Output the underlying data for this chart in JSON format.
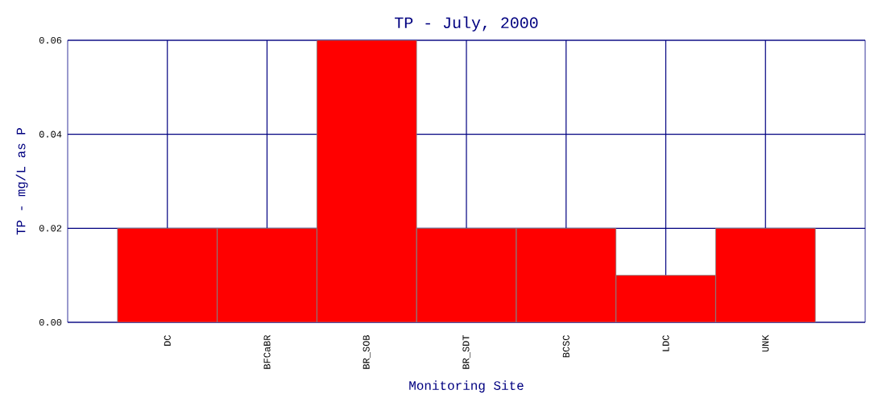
{
  "chart_data": {
    "type": "bar",
    "title": "TP - July, 2000",
    "xlabel": "Monitoring Site",
    "ylabel": "TP - mg/L as P",
    "categories": [
      "DC",
      "BFCaBR",
      "BR_SOB",
      "BR_SDT",
      "BCSC",
      "LDC",
      "UNK"
    ],
    "values": [
      0.02,
      0.02,
      0.06,
      0.02,
      0.02,
      0.01,
      0.02
    ],
    "color": "#ff0000",
    "ylim": [
      0,
      0.06
    ],
    "yticks": [
      {
        "value": 0,
        "label": "0.00"
      },
      {
        "value": 0.02,
        "label": "0.02"
      },
      {
        "value": 0.04,
        "label": "0.04"
      },
      {
        "value": 0.06,
        "label": "0.06"
      }
    ],
    "grid": true
  }
}
